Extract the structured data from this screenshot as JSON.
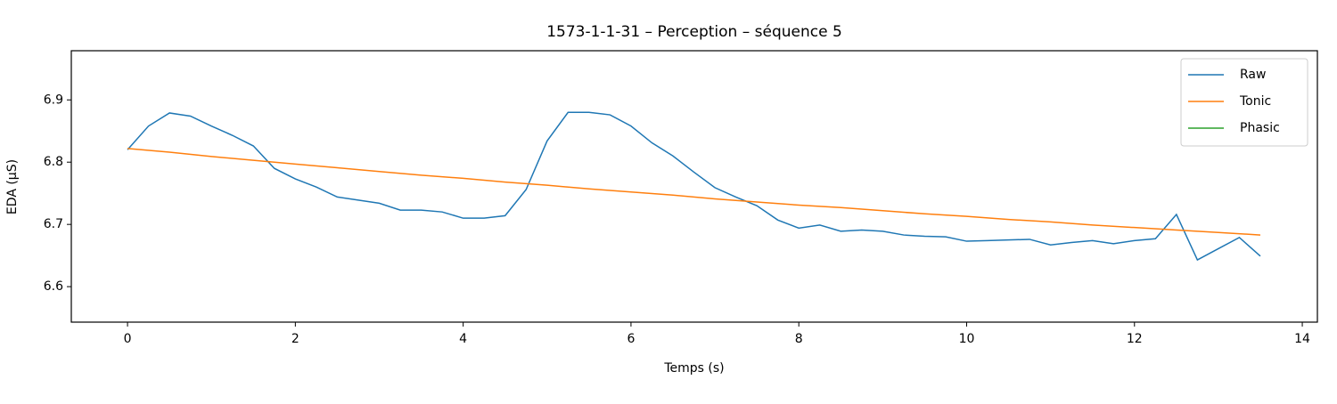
{
  "chart_data": {
    "type": "line",
    "title": "1573-1-1-31 – Perception – séquence 5",
    "x_label": "Temps (s)",
    "y_label": "EDA (µS)",
    "xlim": [
      -0.67,
      14.18
    ],
    "ylim": [
      6.543,
      6.979
    ],
    "xticks": [
      0,
      2,
      4,
      6,
      8,
      10,
      12,
      14
    ],
    "yticks": [
      6.6,
      6.7,
      6.8,
      6.9
    ],
    "legend": "upper right",
    "series": [
      {
        "name": "Raw",
        "color": "#1f77b4",
        "x": [
          0,
          0.25,
          0.5,
          0.75,
          1,
          1.25,
          1.5,
          1.75,
          2,
          2.25,
          2.5,
          2.75,
          3,
          3.25,
          3.5,
          3.75,
          4,
          4.25,
          4.5,
          4.75,
          5,
          5.25,
          5.5,
          5.75,
          6,
          6.25,
          6.5,
          6.75,
          7,
          7.25,
          7.5,
          7.75,
          8,
          8.25,
          8.5,
          8.75,
          9,
          9.25,
          9.5,
          9.75,
          10,
          10.25,
          10.5,
          10.75,
          11,
          11.25,
          11.5,
          11.75,
          12,
          12.25,
          12.5,
          12.75,
          13,
          13.25,
          13.5
        ],
        "values": [
          6.82,
          6.858,
          6.879,
          6.874,
          6.858,
          6.843,
          6.826,
          6.79,
          6.773,
          6.76,
          6.744,
          6.739,
          6.734,
          6.723,
          6.723,
          6.72,
          6.71,
          6.71,
          6.714,
          6.756,
          6.834,
          6.88,
          6.88,
          6.876,
          6.858,
          6.831,
          6.81,
          6.784,
          6.759,
          6.744,
          6.73,
          6.707,
          6.694,
          6.699,
          6.689,
          6.691,
          6.689,
          6.683,
          6.681,
          6.68,
          6.673,
          6.674,
          6.675,
          6.676,
          6.667,
          6.671,
          6.674,
          6.669,
          6.674,
          6.677,
          6.716,
          6.643,
          6.661,
          6.679,
          6.649
        ]
      },
      {
        "name": "Tonic",
        "color": "#ff7f0e",
        "x": [
          0,
          0.5,
          1,
          1.5,
          2,
          2.5,
          3,
          3.5,
          4,
          4.5,
          5,
          5.5,
          6,
          6.5,
          7,
          7.5,
          8,
          8.5,
          9,
          9.5,
          10,
          10.5,
          11,
          11.5,
          12,
          12.5,
          13,
          13.5
        ],
        "values": [
          6.822,
          6.816,
          6.809,
          6.803,
          6.797,
          6.791,
          6.785,
          6.779,
          6.774,
          6.768,
          6.763,
          6.757,
          6.752,
          6.747,
          6.741,
          6.736,
          6.731,
          6.727,
          6.722,
          6.717,
          6.713,
          6.708,
          6.704,
          6.699,
          6.695,
          6.691,
          6.687,
          6.683
        ]
      },
      {
        "name": "Phasic",
        "color": "#2ca02c",
        "x": [],
        "values": []
      }
    ]
  }
}
